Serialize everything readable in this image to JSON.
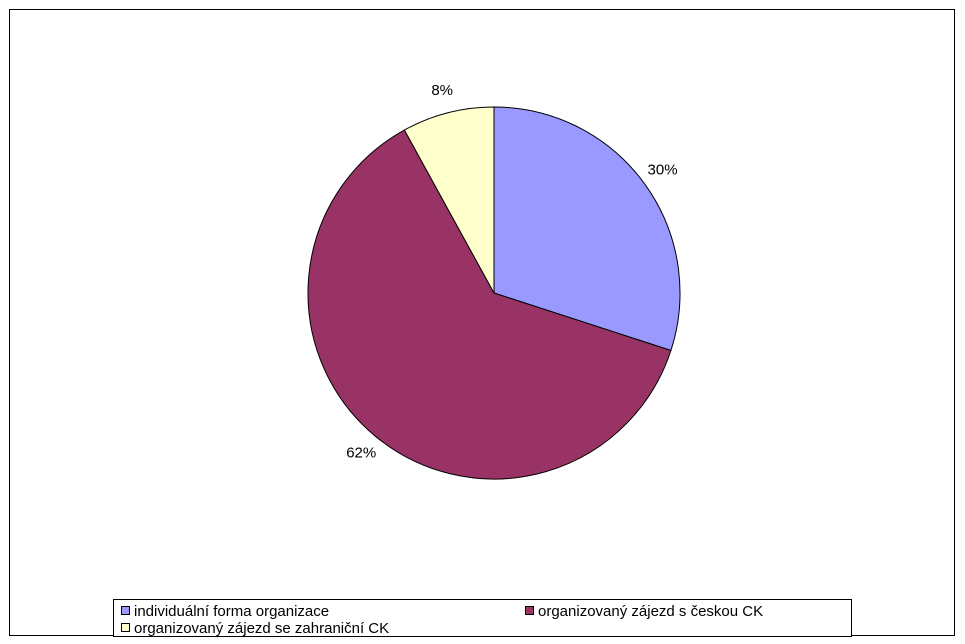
{
  "chart_data": {
    "type": "pie",
    "categories": [
      "individuální forma organizace",
      "organizovaný zájezd s českou CK",
      "organizovaný zájezd se zahraniční CK"
    ],
    "values": [
      30,
      62,
      8
    ],
    "value_labels": [
      "30%",
      "62%",
      "8%"
    ],
    "colors": [
      "#9999ff",
      "#993366",
      "#ffffcc"
    ]
  }
}
